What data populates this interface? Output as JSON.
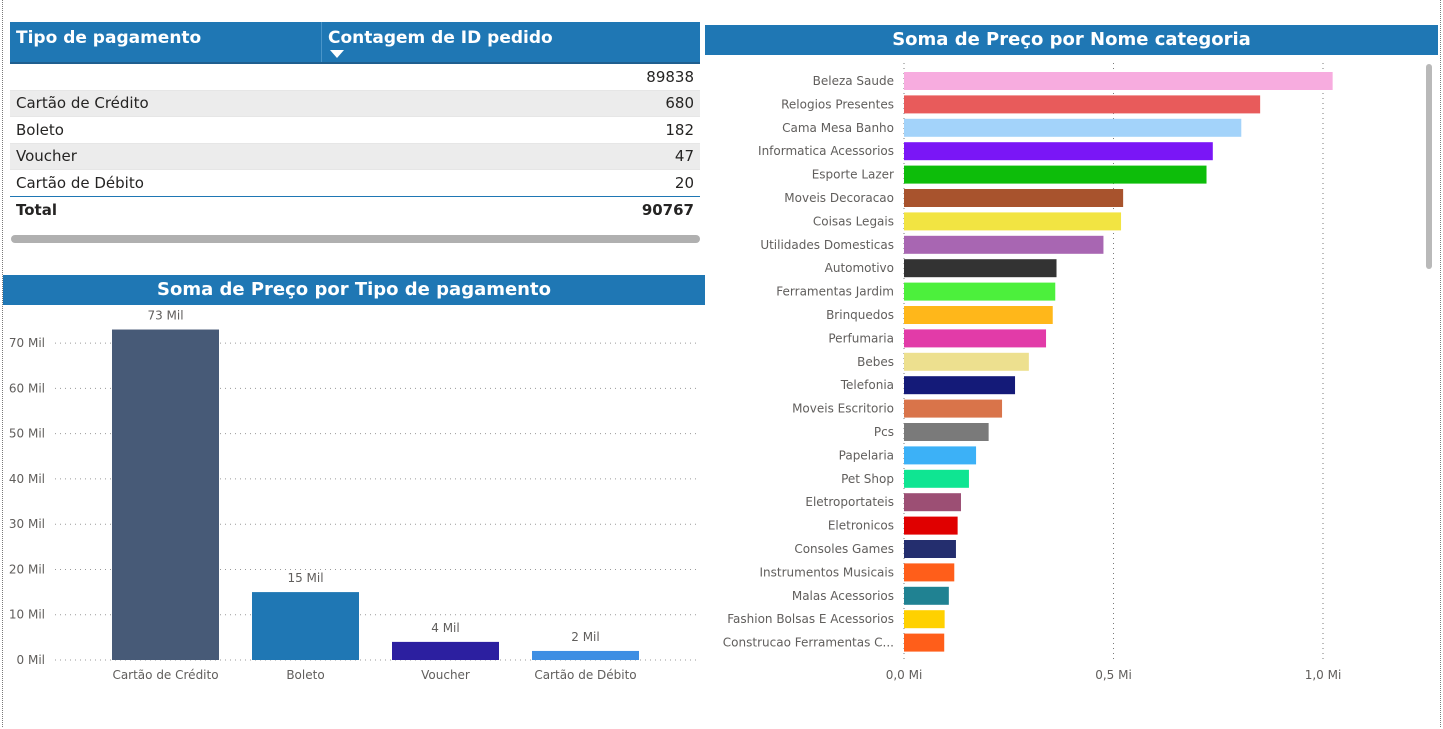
{
  "table": {
    "headers": [
      "Tipo de pagamento",
      "Contagem de ID pedido"
    ],
    "rows": [
      {
        "tipo": "",
        "contagem": "89838"
      },
      {
        "tipo": "Cartão de Crédito",
        "contagem": "680"
      },
      {
        "tipo": "Boleto",
        "contagem": "182"
      },
      {
        "tipo": "Voucher",
        "contagem": "47"
      },
      {
        "tipo": "Cartão de Débito",
        "contagem": "20"
      }
    ],
    "total_label": "Total",
    "total_value": "90767"
  },
  "chart_data": [
    {
      "type": "bar",
      "title": "Soma de Preço por Tipo de pagamento",
      "categories": [
        "Cartão de Crédito",
        "Boleto",
        "Voucher",
        "Cartão de Débito"
      ],
      "values": [
        73000,
        15000,
        4000,
        2000
      ],
      "data_labels": [
        "73 Mil",
        "15 Mil",
        "4 Mil",
        "2 Mil"
      ],
      "colors": [
        "#475a77",
        "#1f77b4",
        "#2c1fa0",
        "#3d8ee3"
      ],
      "yticks": [
        0,
        10000,
        20000,
        30000,
        40000,
        50000,
        60000,
        70000
      ],
      "ytick_labels": [
        "0 Mil",
        "10 Mil",
        "20 Mil",
        "30 Mil",
        "40 Mil",
        "50 Mil",
        "60 Mil",
        "70 Mil"
      ],
      "ylim": [
        0,
        74000
      ],
      "xlabel": "",
      "ylabel": "",
      "grid": true
    },
    {
      "type": "bar",
      "orientation": "horizontal",
      "title": "Soma de Preço por Nome categoria",
      "categories": [
        "Beleza Saude",
        "Relogios Presentes",
        "Cama Mesa Banho",
        "Informatica Acessorios",
        "Esporte Lazer",
        "Moveis Decoracao",
        "Coisas Legais",
        "Utilidades Domesticas",
        "Automotivo",
        "Ferramentas Jardim",
        "Brinquedos",
        "Perfumaria",
        "Bebes",
        "Telefonia",
        "Moveis Escritorio",
        "Pcs",
        "Papelaria",
        "Pet Shop",
        "Eletroportateis",
        "Eletronicos",
        "Consoles Games",
        "Instrumentos Musicais",
        "Malas Acessorios",
        "Fashion Bolsas E Acessorios",
        "Construcao Ferramentas C..."
      ],
      "values": [
        1023000,
        850000,
        805000,
        737000,
        722000,
        523000,
        518000,
        476000,
        364000,
        361000,
        355000,
        339000,
        298000,
        265000,
        234000,
        202000,
        172000,
        155000,
        136000,
        128000,
        124000,
        120000,
        107000,
        97000,
        96000
      ],
      "colors": [
        "#f7acdf",
        "#e85b5b",
        "#a3d3fa",
        "#7a16f6",
        "#0dbd0a",
        "#a8532d",
        "#f2e442",
        "#a866b2",
        "#333333",
        "#4cf03c",
        "#ffb71a",
        "#e23ba8",
        "#ede08f",
        "#141a78",
        "#d9744a",
        "#7a7a7a",
        "#3cb1f7",
        "#0fe592",
        "#9c4f74",
        "#e00000",
        "#242e6e",
        "#ff5e1a",
        "#208292",
        "#ffd100",
        "#ff5e1a"
      ],
      "xticks": [
        0,
        500000,
        1000000
      ],
      "xtick_labels": [
        "0,0 Mi",
        "0,5 Mi",
        "1,0 Mi"
      ],
      "xlim": [
        0,
        1050000
      ],
      "xlabel": "",
      "ylabel": "",
      "grid": true
    }
  ]
}
